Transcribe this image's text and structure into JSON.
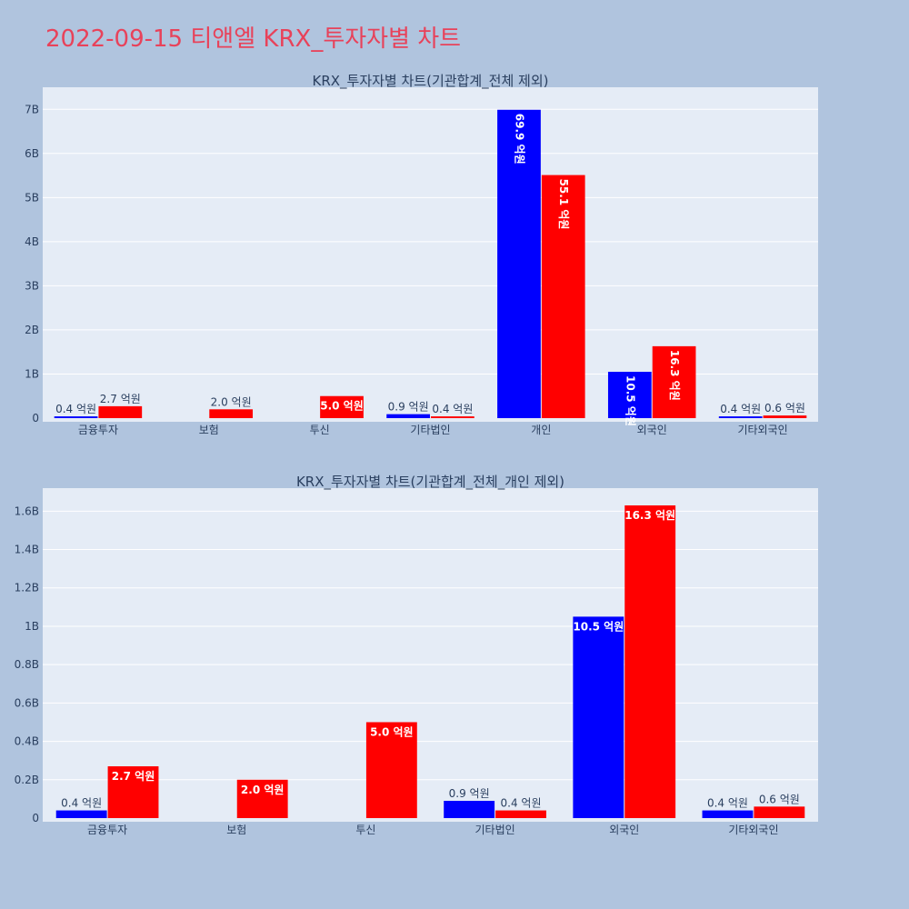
{
  "page": {
    "title": "2022-09-15 티앤엘 KRX_투자자별 차트"
  },
  "colors": {
    "background": "#b0c4de",
    "plot_background": "#e5ecf6",
    "gridline": "#ffffff",
    "series_blue": "#0000ff",
    "series_red": "#ff0000",
    "title": "#e8425a",
    "text": "#2a3f5f"
  },
  "chart_data": [
    {
      "type": "bar",
      "title": "KRX_투자자별 차트(기관합계_전체 제외)",
      "categories": [
        "금융투자",
        "보험",
        "투신",
        "기타법인",
        "개인",
        "외국인",
        "기타외국인"
      ],
      "series": [
        {
          "color": "#0000ff",
          "values": [
            40000000.0,
            null,
            null,
            90000000.0,
            6990000000.0,
            1050000000.0,
            40000000.0
          ],
          "labels": [
            "0.4 억원",
            "",
            "",
            "0.9 억원",
            "69.9 억원",
            "10.5 억원",
            "0.4 억원"
          ]
        },
        {
          "color": "#ff0000",
          "values": [
            270000000.0,
            200000000.0,
            500000000.0,
            40000000.0,
            5510000000.0,
            1630000000.0,
            60000000.0
          ],
          "labels": [
            "2.7 억원",
            "2.0 억원",
            "5.0 억원",
            "0.4 억원",
            "55.1 억원",
            "16.3 억원",
            "0.6 억원"
          ]
        }
      ],
      "ylim": [
        0,
        7500000000.0
      ],
      "yticks": [
        0,
        1000000000.0,
        2000000000.0,
        3000000000.0,
        4000000000.0,
        5000000000.0,
        6000000000.0,
        7000000000.0
      ],
      "ytick_labels": [
        "0",
        "1B",
        "2B",
        "3B",
        "4B",
        "5B",
        "6B",
        "7B"
      ],
      "grid": true,
      "legend": "none",
      "xlabel": "",
      "ylabel": ""
    },
    {
      "type": "bar",
      "title": "KRX_투자자별 차트(기관합계_전체_개인 제외)",
      "categories": [
        "금융투자",
        "보험",
        "투신",
        "기타법인",
        "외국인",
        "기타외국인"
      ],
      "series": [
        {
          "color": "#0000ff",
          "values": [
            40000000.0,
            null,
            null,
            90000000.0,
            1050000000.0,
            40000000.0
          ],
          "labels": [
            "0.4 억원",
            "",
            "",
            "0.9 억원",
            "10.5 억원",
            "0.4 억원"
          ]
        },
        {
          "color": "#ff0000",
          "values": [
            270000000.0,
            200000000.0,
            500000000.0,
            40000000.0,
            1630000000.0,
            60000000.0
          ],
          "labels": [
            "2.7 억원",
            "2.0 억원",
            "5.0 억원",
            "0.4 억원",
            "16.3 억원",
            "0.6 억원"
          ]
        }
      ],
      "ylim": [
        0,
        1720000000.0
      ],
      "yticks": [
        0,
        200000000.0,
        400000000.0,
        600000000.0,
        800000000.0,
        1000000000.0,
        1200000000.0,
        1400000000.0,
        1600000000.0
      ],
      "ytick_labels": [
        "0",
        "0.2B",
        "0.4B",
        "0.6B",
        "0.8B",
        "1B",
        "1.2B",
        "1.4B",
        "1.6B"
      ],
      "grid": true,
      "legend": "none",
      "xlabel": "",
      "ylabel": ""
    }
  ]
}
